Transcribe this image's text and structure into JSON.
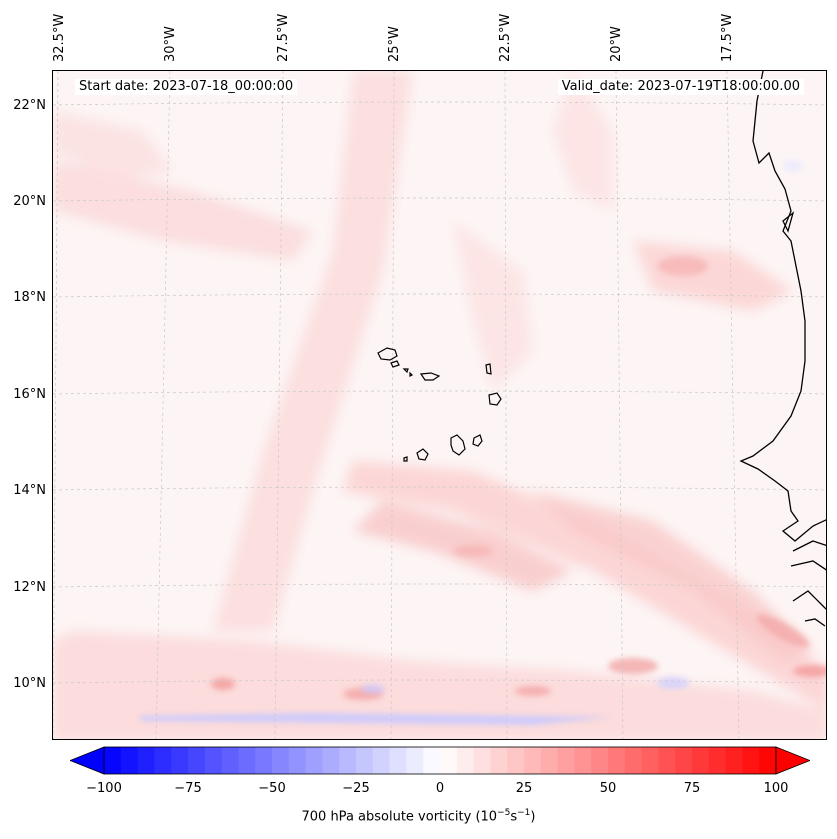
{
  "header": {
    "start_date": "Start date: 2023-07-18_00:00:00",
    "valid_date": "Valid_date: 2023-07-19T18:00:00.00"
  },
  "map": {
    "lon_labels": [
      "32.5°W",
      "30°W",
      "27.5°W",
      "25°W",
      "22.5°W",
      "20°W",
      "17.5°W"
    ],
    "lat_labels": [
      "22°N",
      "20°N",
      "18°N",
      "16°N",
      "14°N",
      "12°N",
      "10°N"
    ],
    "colors": {
      "coastline": "#000000",
      "gridline": "#c8c8c8",
      "positive": "#ff0000",
      "negative": "#0000ff",
      "neutral": "#ffffff"
    }
  },
  "colorbar": {
    "ticks": [
      "−100",
      "−75",
      "−50",
      "−25",
      "0",
      "25",
      "50",
      "75",
      "100"
    ],
    "range": [
      -100,
      100
    ],
    "label_main": "700 hPa absolute vorticity (10",
    "label_exp1": "−5",
    "label_mid": "s",
    "label_exp2": "−1",
    "label_end": ")",
    "colormap": "bwr"
  }
}
